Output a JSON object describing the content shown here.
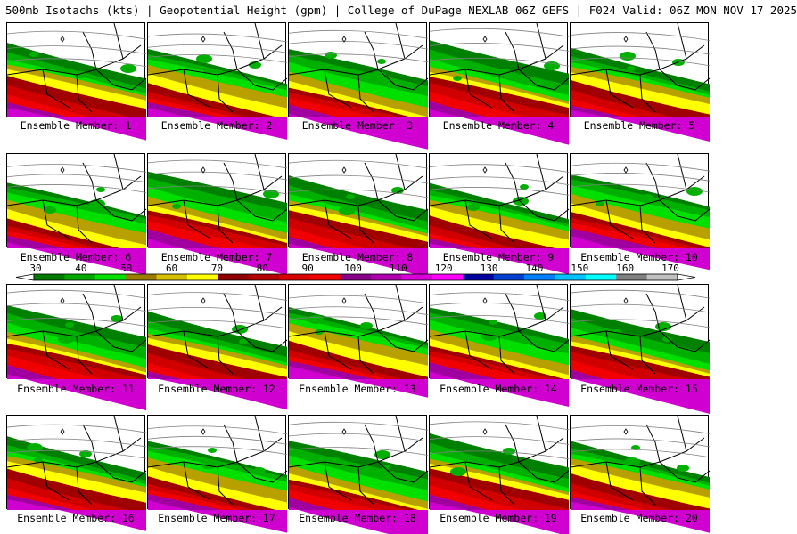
{
  "header": {
    "title": "500mb Isotachs (kts) | Geopotential Height (gpm) | College of DuPage NEXLAB   06Z GEFS | F024 Valid: 06Z MON NOV 17 2025"
  },
  "panels": [
    {
      "label": "Ensemble Member: 1"
    },
    {
      "label": "Ensemble Member: 2"
    },
    {
      "label": "Ensemble Member: 3"
    },
    {
      "label": "Ensemble Member: 4"
    },
    {
      "label": "Ensemble Member: 5"
    },
    {
      "label": "Ensemble Member: 6"
    },
    {
      "label": "Ensemble Member: 7"
    },
    {
      "label": "Ensemble Member: 8"
    },
    {
      "label": "Ensemble Member: 9"
    },
    {
      "label": "Ensemble Member: 10"
    },
    {
      "label": "Ensemble Member: 11"
    },
    {
      "label": "Ensemble Member: 12"
    },
    {
      "label": "Ensemble Member: 13"
    },
    {
      "label": "Ensemble Member: 14"
    },
    {
      "label": "Ensemble Member: 15"
    },
    {
      "label": "Ensemble Member: 16"
    },
    {
      "label": "Ensemble Member: 17"
    },
    {
      "label": "Ensemble Member: 18"
    },
    {
      "label": "Ensemble Member: 19"
    },
    {
      "label": "Ensemble Member: 20"
    }
  ],
  "colorbar": {
    "tick_labels": [
      "30",
      "40",
      "50",
      "60",
      "70",
      "80",
      "90",
      "100",
      "110",
      "120",
      "130",
      "140",
      "150",
      "160",
      "170"
    ],
    "colors": [
      "#007a00",
      "#00a800",
      "#00e000",
      "#9a7d00",
      "#d4c000",
      "#ffff00",
      "#900000",
      "#b40000",
      "#d80000",
      "#f00000",
      "#8a008a",
      "#b000b0",
      "#d800d8",
      "#ff00ff",
      "#0000a0",
      "#0040d0",
      "#0080ff",
      "#00c0ff",
      "#00ffff",
      "#808080",
      "#c0c0c0"
    ]
  },
  "bands": {
    "green_dark": "#008000",
    "green_mid": "#00b000",
    "green_light": "#00e000",
    "tan": "#b8a000",
    "yellow": "#ffff00",
    "red_dark": "#a00000",
    "red_mid": "#d00000",
    "red_bright": "#f00000",
    "purple": "#a000a0",
    "magenta": "#d000d0"
  }
}
